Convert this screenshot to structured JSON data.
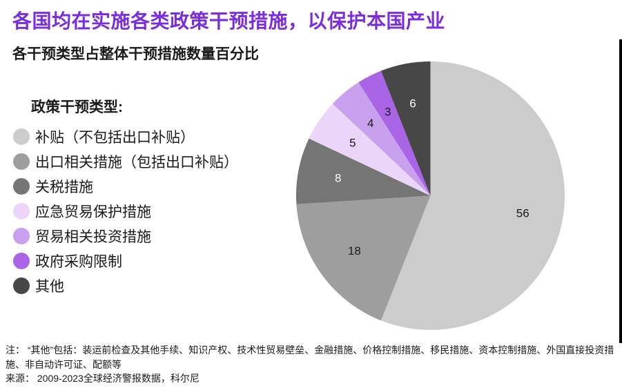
{
  "header": {
    "title": "各国均在实施各类政策干预措施，以保护本国产业",
    "subtitle": "各干预类型占整体干预措施数量百分比",
    "accent_color": "#7B2CDE"
  },
  "legend": {
    "title": "政策干预类型:",
    "items": [
      {
        "label": "补贴（不包括出口补贴）",
        "color": "#CCCCCC"
      },
      {
        "label": "出口相关措施（包括出口补贴）",
        "color": "#9E9E9E"
      },
      {
        "label": "关税措施",
        "color": "#757575"
      },
      {
        "label": "应急贸易保护措施",
        "color": "#EBD5F9"
      },
      {
        "label": "贸易相关投资措施",
        "color": "#C9A0EE"
      },
      {
        "label": "政府采购限制",
        "color": "#A965E6"
      },
      {
        "label": "其他",
        "color": "#474747"
      }
    ]
  },
  "chart_data": {
    "type": "pie",
    "title": "各干预类型占整体干预措施数量百分比",
    "categories": [
      "补贴（不包括出口补贴）",
      "出口相关措施（包括出口补贴）",
      "关税措施",
      "应急贸易保护措施",
      "贸易相关投资措施",
      "政府采购限制",
      "其他"
    ],
    "values": [
      56,
      18,
      8,
      5,
      4,
      3,
      6
    ],
    "colors": [
      "#CCCCCC",
      "#9E9E9E",
      "#757575",
      "#EBD5F9",
      "#C9A0EE",
      "#A965E6",
      "#474747"
    ],
    "value_label_colors": [
      "#1a1a1a",
      "#1a1a1a",
      "#ffffff",
      "#1a1a1a",
      "#1a1a1a",
      "#1a1a1a",
      "#ffffff"
    ],
    "unit": "percent",
    "start_angle_deg": 0,
    "direction": "clockwise",
    "legend_position": "left",
    "labels_inside": true
  },
  "footnotes": {
    "note": "注： “其他”包括：装运前检查及其他手续、知识产权、技术性贸易壁垒、金融措施、价格控制措施、移民措施、资本控制措施、外国直接投资措施、非自动许可证、配额等",
    "source": "来源： 2009-2023全球经济警报数据，科尔尼"
  }
}
